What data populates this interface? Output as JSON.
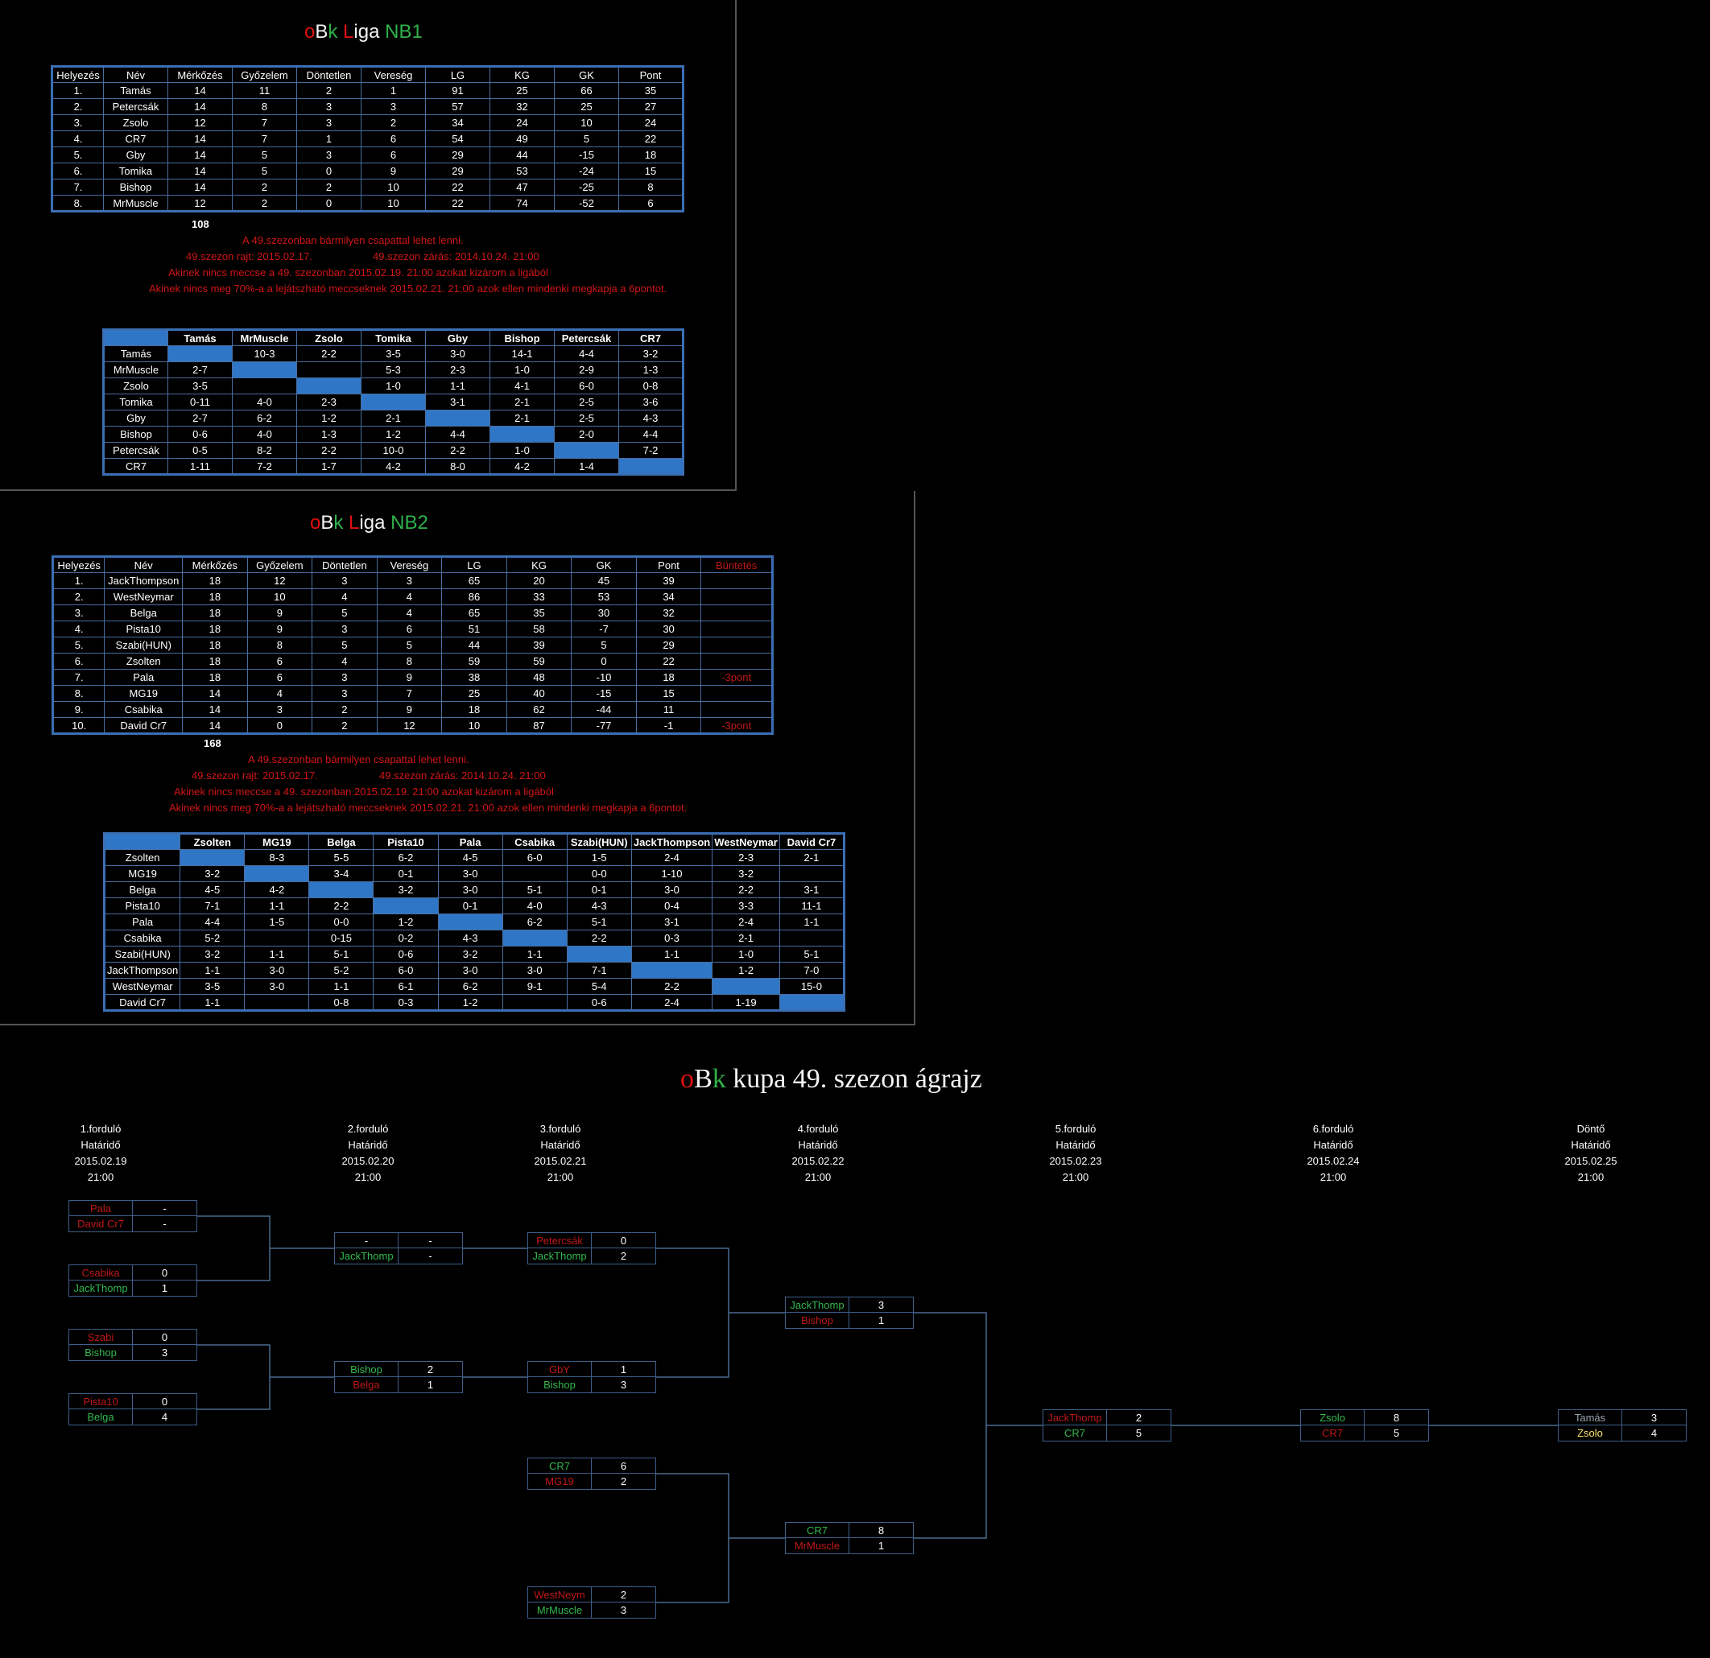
{
  "nb1": {
    "title": {
      "o": "o",
      "b": "B",
      "k": "k",
      "l": "L",
      "iga": "iga",
      "nb": "NB1"
    },
    "headers": [
      "Helyezés",
      "Név",
      "Mérkőzés",
      "Győzelem",
      "Döntetlen",
      "Vereség",
      "LG",
      "KG",
      "GK",
      "Pont"
    ],
    "rows": [
      [
        "1.",
        "Tamás",
        "14",
        "11",
        "2",
        "1",
        "91",
        "25",
        "66",
        "35"
      ],
      [
        "2.",
        "Petercsák",
        "14",
        "8",
        "3",
        "3",
        "57",
        "32",
        "25",
        "27"
      ],
      [
        "3.",
        "Zsolo",
        "12",
        "7",
        "3",
        "2",
        "34",
        "24",
        "10",
        "24"
      ],
      [
        "4.",
        "CR7",
        "14",
        "7",
        "1",
        "6",
        "54",
        "49",
        "5",
        "22"
      ],
      [
        "5.",
        "Gby",
        "14",
        "5",
        "3",
        "6",
        "29",
        "44",
        "-15",
        "18"
      ],
      [
        "6.",
        "Tomika",
        "14",
        "5",
        "0",
        "9",
        "29",
        "53",
        "-24",
        "15"
      ],
      [
        "7.",
        "Bishop",
        "14",
        "2",
        "2",
        "10",
        "22",
        "47",
        "-25",
        "8"
      ],
      [
        "8.",
        "MrMuscle",
        "12",
        "2",
        "0",
        "10",
        "22",
        "74",
        "-52",
        "6"
      ]
    ],
    "total": "108",
    "notes": [
      "A 49.szezonban bármilyen csapattal lehet lenni.",
      "49.szezon rajt: 2015.02.17.",
      "49.szezon zárás: 2014.10.24. 21:00",
      "Akinek nincs meccse a 49. szezonban 2015.02.19. 21:00 azokat kizárom a ligából",
      "Akinek nincs meg 70%-a a lejátszható meccseknek 2015.02.21. 21:00 azok ellen mindenki megkapja a 6pontot."
    ],
    "matrix_cols": [
      "Tamás",
      "MrMuscle",
      "Zsolo",
      "Tomika",
      "Gby",
      "Bishop",
      "Petercsák",
      "CR7"
    ],
    "matrix_rows": [
      {
        "name": "Tamás",
        "cells": [
          "",
          "10-3",
          "2-2",
          "3-5",
          "3-0",
          "14-1",
          "4-4",
          "3-2"
        ]
      },
      {
        "name": "MrMuscle",
        "cells": [
          "2-7",
          "",
          "",
          "5-3",
          "2-3",
          "1-0",
          "2-9",
          "1-3"
        ]
      },
      {
        "name": "Zsolo",
        "cells": [
          "3-5",
          "",
          "",
          "1-0",
          "1-1",
          "4-1",
          "6-0",
          "0-8"
        ]
      },
      {
        "name": "Tomika",
        "cells": [
          "0-11",
          "4-0",
          "2-3",
          "",
          "3-1",
          "2-1",
          "2-5",
          "3-6"
        ]
      },
      {
        "name": "Gby",
        "cells": [
          "2-7",
          "6-2",
          "1-2",
          "2-1",
          "",
          "2-1",
          "2-5",
          "4-3"
        ]
      },
      {
        "name": "Bishop",
        "cells": [
          "0-6",
          "4-0",
          "1-3",
          "1-2",
          "4-4",
          "",
          "2-0",
          "4-4"
        ]
      },
      {
        "name": "Petercsák",
        "cells": [
          "0-5",
          "8-2",
          "2-2",
          "10-0",
          "2-2",
          "1-0",
          "",
          "7-2"
        ]
      },
      {
        "name": "CR7",
        "cells": [
          "1-11",
          "7-2",
          "1-7",
          "4-2",
          "8-0",
          "4-2",
          "1-4",
          ""
        ]
      }
    ]
  },
  "nb2": {
    "title": {
      "o": "o",
      "b": "B",
      "k": "k",
      "l": "L",
      "iga": "iga",
      "nb": "NB2"
    },
    "headers": [
      "Helyezés",
      "Név",
      "Mérkőzés",
      "Győzelem",
      "Döntetlen",
      "Vereség",
      "LG",
      "KG",
      "GK",
      "Pont",
      "Büntetés"
    ],
    "rows": [
      [
        "1.",
        "JackThompson",
        "18",
        "12",
        "3",
        "3",
        "65",
        "20",
        "45",
        "39",
        ""
      ],
      [
        "2.",
        "WestNeymar",
        "18",
        "10",
        "4",
        "4",
        "86",
        "33",
        "53",
        "34",
        ""
      ],
      [
        "3.",
        "Belga",
        "18",
        "9",
        "5",
        "4",
        "65",
        "35",
        "30",
        "32",
        ""
      ],
      [
        "4.",
        "Pista10",
        "18",
        "9",
        "3",
        "6",
        "51",
        "58",
        "-7",
        "30",
        ""
      ],
      [
        "5.",
        "Szabi(HUN)",
        "18",
        "8",
        "5",
        "5",
        "44",
        "39",
        "5",
        "29",
        ""
      ],
      [
        "6.",
        "Zsolten",
        "18",
        "6",
        "4",
        "8",
        "59",
        "59",
        "0",
        "22",
        ""
      ],
      [
        "7.",
        "Pala",
        "18",
        "6",
        "3",
        "9",
        "38",
        "48",
        "-10",
        "18",
        "-3pont"
      ],
      [
        "8.",
        "MG19",
        "14",
        "4",
        "3",
        "7",
        "25",
        "40",
        "-15",
        "15",
        ""
      ],
      [
        "9.",
        "Csabika",
        "14",
        "3",
        "2",
        "9",
        "18",
        "62",
        "-44",
        "11",
        ""
      ],
      [
        "10.",
        "David Cr7",
        "14",
        "0",
        "2",
        "12",
        "10",
        "87",
        "-77",
        "-1",
        "-3pont"
      ]
    ],
    "total": "168",
    "notes": [
      "A 49.szezonban bármilyen csapattal lehet lenni.",
      "49.szezon rajt: 2015.02.17.",
      "49.szezon zárás: 2014.10.24. 21:00",
      "Akinek nincs meccse a 49. szezonban 2015.02.19. 21:00 azokat kizárom a ligából",
      "Akinek nincs meg 70%-a a lejátszható meccseknek 2015.02.21. 21:00 azok ellen mindenki megkapja a 6pontot."
    ],
    "matrix_cols": [
      "Zsolten",
      "MG19",
      "Belga",
      "Pista10",
      "Pala",
      "Csabika",
      "Szabi(HUN)",
      "JackThompson",
      "WestNeymar",
      "David Cr7"
    ],
    "matrix_rows": [
      {
        "name": "Zsolten",
        "cells": [
          "",
          "8-3",
          "5-5",
          "6-2",
          "4-5",
          "6-0",
          "1-5",
          "2-4",
          "2-3",
          "2-1"
        ]
      },
      {
        "name": "MG19",
        "cells": [
          "3-2",
          "",
          "3-4",
          "0-1",
          "3-0",
          "",
          "0-0",
          "1-10",
          "3-2",
          ""
        ]
      },
      {
        "name": "Belga",
        "cells": [
          "4-5",
          "4-2",
          "",
          "3-2",
          "3-0",
          "5-1",
          "0-1",
          "3-0",
          "2-2",
          "3-1"
        ]
      },
      {
        "name": "Pista10",
        "cells": [
          "7-1",
          "1-1",
          "2-2",
          "",
          "0-1",
          "4-0",
          "4-3",
          "0-4",
          "3-3",
          "11-1"
        ]
      },
      {
        "name": "Pala",
        "cells": [
          "4-4",
          "1-5",
          "0-0",
          "1-2",
          "",
          "6-2",
          "5-1",
          "3-1",
          "2-4",
          "1-1"
        ]
      },
      {
        "name": "Csabika",
        "cells": [
          "5-2",
          "",
          "0-15",
          "0-2",
          "4-3",
          "",
          "2-2",
          "0-3",
          "2-1",
          ""
        ]
      },
      {
        "name": "Szabi(HUN)",
        "cells": [
          "3-2",
          "1-1",
          "5-1",
          "0-6",
          "3-2",
          "1-1",
          "",
          "1-1",
          "1-0",
          "5-1"
        ]
      },
      {
        "name": "JackThompson",
        "cells": [
          "1-1",
          "3-0",
          "5-2",
          "6-0",
          "3-0",
          "3-0",
          "7-1",
          "",
          "1-2",
          "7-0"
        ]
      },
      {
        "name": "WestNeymar",
        "cells": [
          "3-5",
          "3-0",
          "1-1",
          "6-1",
          "6-2",
          "9-1",
          "5-4",
          "2-2",
          "",
          "15-0"
        ]
      },
      {
        "name": "David Cr7",
        "cells": [
          "1-1",
          "",
          "0-8",
          "0-3",
          "1-2",
          "",
          "0-6",
          "2-4",
          "1-19",
          ""
        ]
      }
    ]
  },
  "kupa": {
    "title": {
      "o": "o",
      "b": "B",
      "k": "k",
      "rest": "kupa 49. szezon ágrajz"
    },
    "rounds": [
      {
        "name": "1.forduló",
        "label": "Határidő",
        "date": "2015.02.19",
        "time": "21:00"
      },
      {
        "name": "2.forduló",
        "label": "Határidő",
        "date": "2015.02.20",
        "time": "21:00"
      },
      {
        "name": "3.forduló",
        "label": "Határidő",
        "date": "2015.02.21",
        "time": "21:00"
      },
      {
        "name": "4.forduló",
        "label": "Határidő",
        "date": "2015.02.22",
        "time": "21:00"
      },
      {
        "name": "5.forduló",
        "label": "Határidő",
        "date": "2015.02.23",
        "time": "21:00"
      },
      {
        "name": "6.forduló",
        "label": "Határidő",
        "date": "2015.02.24",
        "time": "21:00"
      },
      {
        "name": "Döntő",
        "label": "Határidő",
        "date": "2015.02.25",
        "time": "21:00"
      }
    ],
    "matches": [
      {
        "p1": "Pala",
        "s1": "-",
        "c1": "darkred",
        "p2": "David Cr7",
        "s2": "-",
        "c2": "darkred"
      },
      {
        "p1": "Csabika",
        "s1": "0",
        "c1": "darkred",
        "p2": "JackThomp",
        "s2": "1",
        "c2": "lgreen"
      },
      {
        "p1": "Szabi",
        "s1": "0",
        "c1": "darkred",
        "p2": "Bishop",
        "s2": "3",
        "c2": "lgreen"
      },
      {
        "p1": "Pista10",
        "s1": "0",
        "c1": "darkred",
        "p2": "Belga",
        "s2": "4",
        "c2": "lgreen"
      },
      {
        "p1": "-",
        "s1": "-",
        "c1": "white",
        "p2": "JackThomp",
        "s2": "-",
        "c2": "lgreen"
      },
      {
        "p1": "Bishop",
        "s1": "2",
        "c1": "lgreen",
        "p2": "Belga",
        "s2": "1",
        "c2": "darkred"
      },
      {
        "p1": "Petercsák",
        "s1": "0",
        "c1": "darkred",
        "p2": "JackThomp",
        "s2": "2",
        "c2": "lgreen"
      },
      {
        "p1": "GbY",
        "s1": "1",
        "c1": "darkred",
        "p2": "Bishop",
        "s2": "3",
        "c2": "lgreen"
      },
      {
        "p1": "CR7",
        "s1": "6",
        "c1": "lgreen",
        "p2": "MG19",
        "s2": "2",
        "c2": "darkred"
      },
      {
        "p1": "WestNeym",
        "s1": "2",
        "c1": "darkred",
        "p2": "MrMuscle",
        "s2": "3",
        "c2": "lgreen"
      },
      {
        "p1": "JackThomp",
        "s1": "3",
        "c1": "lgreen",
        "p2": "Bishop",
        "s2": "1",
        "c2": "darkred"
      },
      {
        "p1": "CR7",
        "s1": "8",
        "c1": "lgreen",
        "p2": "MrMuscle",
        "s2": "1",
        "c2": "darkred"
      },
      {
        "p1": "JackThomp",
        "s1": "2",
        "c1": "darkred",
        "p2": "CR7",
        "s2": "5",
        "c2": "lgreen"
      },
      {
        "p1": "Zsolo",
        "s1": "8",
        "c1": "lgreen",
        "p2": "CR7",
        "s2": "5",
        "c2": "darkred"
      },
      {
        "p1": "Tamás",
        "s1": "3",
        "c1": "grey",
        "p2": "Zsolo",
        "s2": "4",
        "c2": "yellow"
      }
    ]
  }
}
